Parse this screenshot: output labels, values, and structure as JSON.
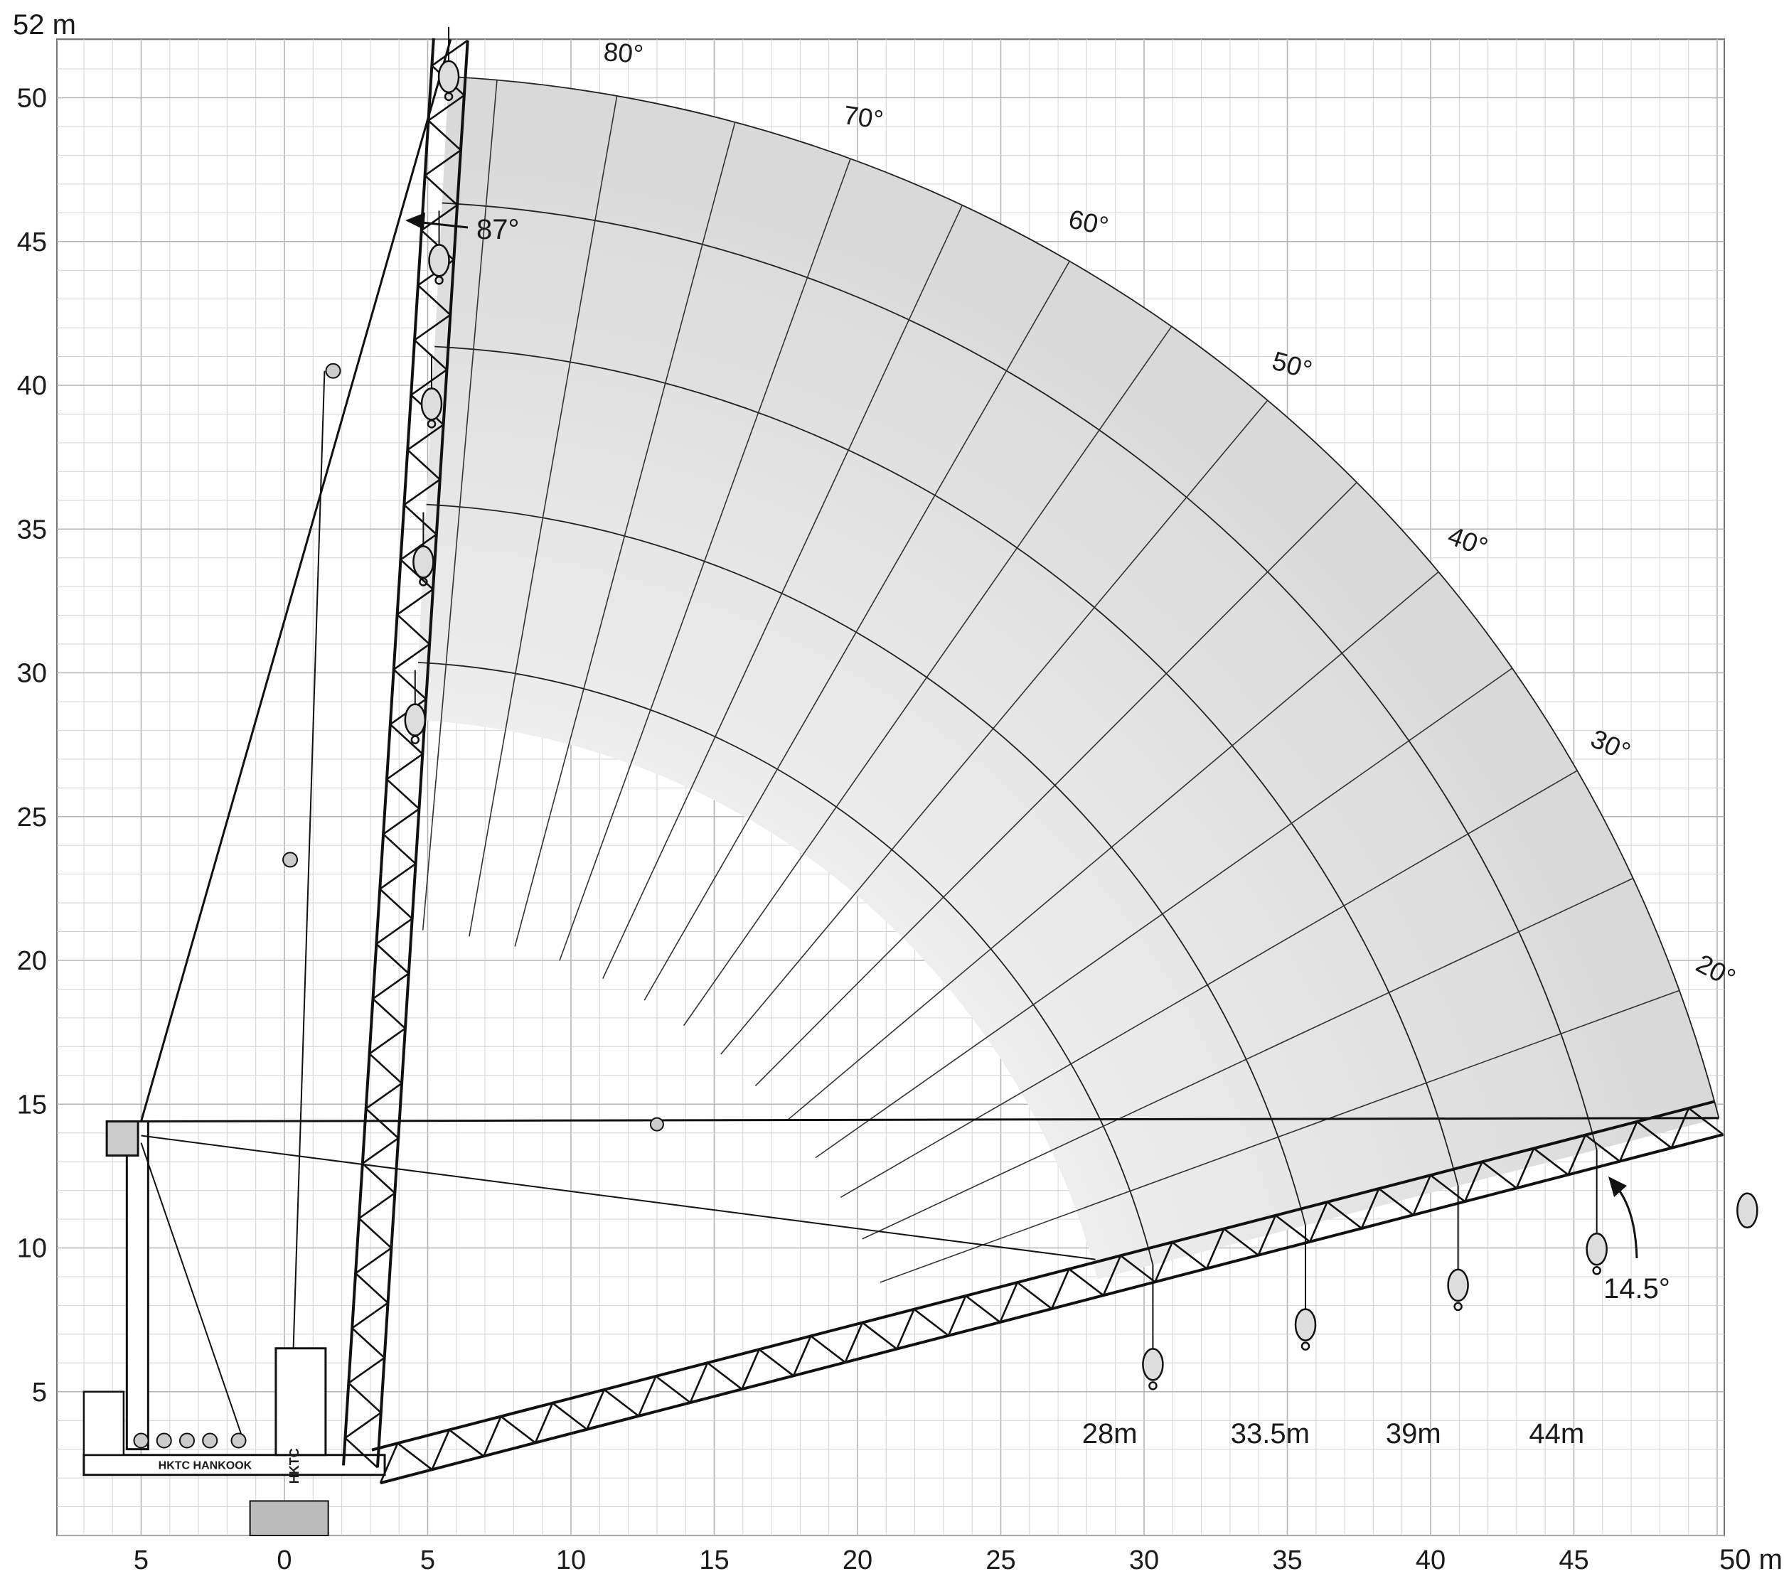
{
  "chart_data": {
    "type": "diagram",
    "x_unit": "m",
    "y_unit": "m",
    "xlim": [
      -7,
      52
    ],
    "ylim": [
      0,
      52
    ],
    "x_ticks": [
      "5",
      "0",
      "5",
      "10",
      "15",
      "20",
      "25",
      "30",
      "35",
      "40",
      "45"
    ],
    "x_tick_values": [
      -5,
      0,
      5,
      10,
      15,
      20,
      25,
      30,
      35,
      40,
      45
    ],
    "x_end_label": "50 m",
    "y_ticks": [
      "5",
      "10",
      "15",
      "20",
      "25",
      "30",
      "35",
      "40",
      "45",
      "50"
    ],
    "y_tick_values": [
      5,
      10,
      15,
      20,
      25,
      30,
      35,
      40,
      45,
      50
    ],
    "y_top_label": "52 m",
    "grid": true,
    "pivot": {
      "x": 3.2,
      "y": 2.4
    },
    "boom_lengths": [
      {
        "label": "28m",
        "length": 28,
        "label_x": 28.8
      },
      {
        "label": "33.5m",
        "length": 33.5,
        "label_x": 34.4
      },
      {
        "label": "39m",
        "length": 39,
        "label_x": 39.4
      },
      {
        "label": "44m",
        "length": 44,
        "label_x": 44.4
      }
    ],
    "max_boom_length": 48.4,
    "inner_arc_radius": 26.0,
    "angle_arc_from": 14.5,
    "angle_arc_to": 87,
    "angle_rays": [
      20,
      25,
      30,
      35,
      40,
      45,
      50,
      55,
      60,
      65,
      70,
      75,
      80,
      85
    ],
    "angle_labels": [
      {
        "text": "80°",
        "angle": 80
      },
      {
        "text": "70°",
        "angle": 70
      },
      {
        "text": "60°",
        "angle": 60
      },
      {
        "text": "50°",
        "angle": 50
      },
      {
        "text": "40°",
        "angle": 40
      },
      {
        "text": "30°",
        "angle": 30
      },
      {
        "text": "20°",
        "angle": 20
      }
    ],
    "max_angle_label": "87°",
    "min_angle_label": "14.5°",
    "crane_labels": {
      "base_text": "HKTC HANKOOK",
      "mast_text": "HKTC"
    }
  }
}
